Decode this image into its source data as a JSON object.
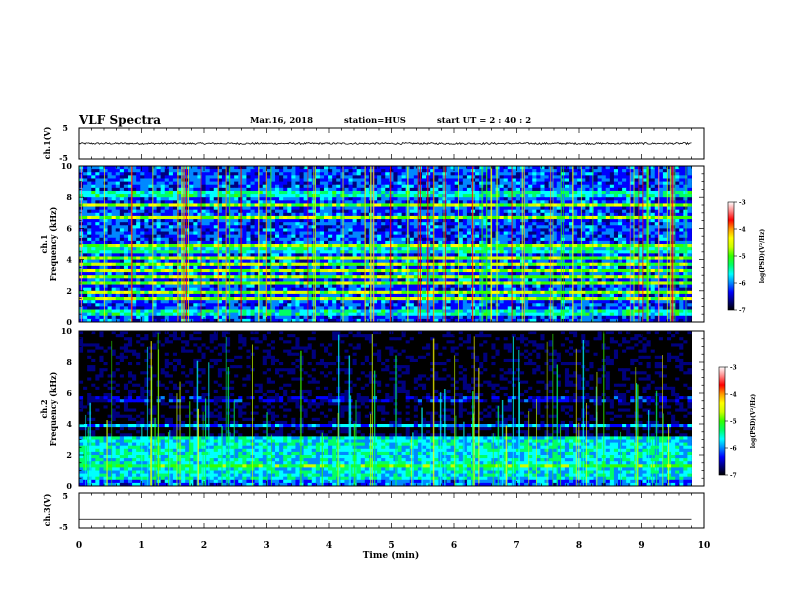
{
  "header": {
    "title": "VLF Spectra",
    "date": "Mar.16, 2018",
    "station": "station=HUS",
    "start_ut": "start UT =  2 : 40 : 2"
  },
  "chart_data": [
    {
      "id": "ch1-waveform",
      "type": "line",
      "ylabel": "ch.1(V)",
      "ylim": [
        -5,
        5
      ],
      "yticks": [
        "5",
        "-5"
      ],
      "xlim": [
        0,
        10
      ],
      "description_level_volts": 0,
      "noise_amplitude_volts": 0.3
    },
    {
      "id": "ch1-spectrogram",
      "type": "heatmap",
      "ylabel": "ch.1\nFrequency (kHz)",
      "ylabel_lines": [
        "ch.1",
        "Frequency (kHz)"
      ],
      "ylim": [
        0,
        10
      ],
      "yticks": [
        "0",
        "2",
        "4",
        "6",
        "8",
        "10"
      ],
      "xlim": [
        0,
        10
      ],
      "data_end_min": 9.8,
      "colorbar": {
        "label": "log(PSD)(V²/Hz)",
        "range": [
          -7,
          -3
        ],
        "ticks": [
          "-3",
          "-4",
          "-5",
          "-6",
          "-7"
        ]
      },
      "background_level": -6.2,
      "bright_bands_khz": [
        0.6,
        1.5,
        1.9,
        2.5,
        2.9,
        3.3,
        3.7,
        4.1,
        4.6,
        4.9,
        6.7,
        7.5,
        8.2
      ]
    },
    {
      "id": "ch2-spectrogram",
      "type": "heatmap",
      "ylabel": "ch.2\nFrequency (kHz)",
      "ylabel_lines": [
        "ch.2",
        "Frequency (kHz)"
      ],
      "ylim": [
        0,
        10
      ],
      "yticks": [
        "0",
        "2",
        "4",
        "6",
        "8",
        "10"
      ],
      "xlim": [
        0,
        10
      ],
      "data_end_min": 9.8,
      "colorbar": {
        "label": "log(PSD)(V²/Hz)",
        "range": [
          -7,
          -3
        ],
        "ticks": [
          "-3",
          "-4",
          "-5",
          "-6",
          "-7"
        ]
      },
      "background_level": -7,
      "bright_bands_khz": [
        0.6,
        1.0,
        1.3,
        1.6,
        2.0,
        2.4,
        2.8,
        3.0,
        3.9,
        5.6
      ]
    },
    {
      "id": "ch3-waveform",
      "type": "line",
      "ylabel": "ch.3(V)",
      "ylim": [
        -5,
        5
      ],
      "yticks": [
        "5",
        "-5"
      ],
      "xlim": [
        0,
        10
      ],
      "description_level_volts": -2.5,
      "noise_amplitude_volts": 0
    }
  ],
  "xaxis": {
    "label": "Time (min)",
    "ticks": [
      "0",
      "1",
      "2",
      "3",
      "4",
      "5",
      "6",
      "7",
      "8",
      "9",
      "10"
    ]
  },
  "colors": {
    "colormap": [
      "#000000",
      "#00007f",
      "#0000ff",
      "#0088ff",
      "#00ffff",
      "#00ff66",
      "#33ff00",
      "#ccff00",
      "#ffff00",
      "#ff9900",
      "#ff0000",
      "#ff8888",
      "#ffffff"
    ]
  }
}
